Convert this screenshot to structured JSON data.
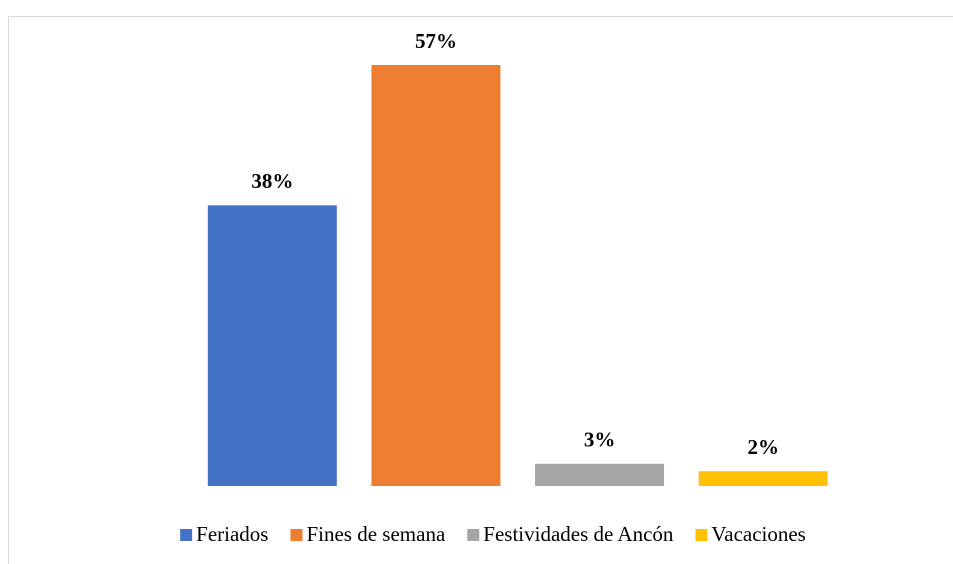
{
  "chart_data": {
    "type": "bar",
    "series": [
      {
        "name": "Feriados",
        "color": "#4472c4",
        "values": [
          38
        ],
        "value_labels": [
          "38%"
        ]
      },
      {
        "name": "Fines de semana",
        "color": "#ed7d31",
        "values": [
          57
        ],
        "value_labels": [
          "57%"
        ]
      },
      {
        "name": "Festividades de Ancón",
        "color": "#a5a5a5",
        "values": [
          3
        ],
        "value_labels": [
          "3%"
        ]
      },
      {
        "name": "Vacaciones",
        "color": "#ffc000",
        "values": [
          2
        ],
        "value_labels": [
          "2%"
        ]
      }
    ],
    "legend": "bottom"
  }
}
